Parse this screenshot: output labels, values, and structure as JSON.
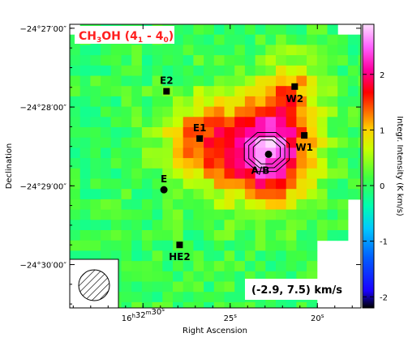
{
  "chart_data": {
    "type": "heatmap",
    "title": "CH3OH (41 - 40)",
    "title_parts": {
      "main": "CH",
      "sub1": "3",
      "mid": "OH (4",
      "sub2": "1",
      "mid2": " - 4",
      "sub3": "0",
      "end": ")"
    },
    "title_color": "#ff2020",
    "xlabel": "Right Ascension",
    "ylabel": "Declination",
    "colorbar_label": "Integr. Intensity (K km/s)",
    "colorbar_range": [
      -2.2,
      2.9
    ],
    "colorbar_ticks": [
      "2",
      "1",
      "0",
      "-1",
      "-2"
    ],
    "colorbar_tick_values": [
      2,
      1,
      0,
      -1,
      -2
    ],
    "velocity_range_label": "(-2.9, 7.5) km/s",
    "x_ticks": [
      {
        "text": "16",
        "sup": "h",
        "text2": "32",
        "sup2": "m",
        "text3": "30",
        "sup3": "s",
        "ra_sec": 30
      },
      {
        "text": "25",
        "sup": "s",
        "ra_sec": 25
      },
      {
        "text": "20",
        "sup": "s",
        "ra_sec": 20
      }
    ],
    "x_range_sec": [
      34.2,
      17.5
    ],
    "y_ticks": [
      {
        "text": "−24°27′00″",
        "offset_arcmin": 0
      },
      {
        "text": "−24°28′00″",
        "offset_arcmin": 1
      },
      {
        "text": "−24°29′00″",
        "offset_arcmin": 2
      },
      {
        "text": "−24°30′00″",
        "offset_arcmin": 3
      }
    ],
    "y_range_arcmin": [
      -0.05,
      3.55
    ],
    "sources": [
      {
        "name": "E2",
        "ra_sec": 28.65,
        "dec_arcmin": 0.8,
        "marker": "square",
        "label_pos": "above"
      },
      {
        "name": "E1",
        "ra_sec": 26.75,
        "dec_arcmin": 1.4,
        "marker": "square",
        "label_pos": "above"
      },
      {
        "name": "E",
        "ra_sec": 28.8,
        "dec_arcmin": 2.05,
        "marker": "circle",
        "label_pos": "above"
      },
      {
        "name": "HE2",
        "ra_sec": 27.9,
        "dec_arcmin": 2.75,
        "marker": "square",
        "label_pos": "below"
      },
      {
        "name": "A/B",
        "ra_sec": 22.8,
        "dec_arcmin": 1.6,
        "marker": "circle",
        "label_pos": "below-left"
      },
      {
        "name": "W2",
        "ra_sec": 21.3,
        "dec_arcmin": 0.74,
        "marker": "square",
        "label_pos": "below"
      },
      {
        "name": "W1",
        "ra_sec": 20.75,
        "dec_arcmin": 1.36,
        "marker": "square",
        "label_pos": "below"
      }
    ],
    "peaks": [
      {
        "ra_sec": 22.9,
        "dec_arcmin": 1.55,
        "amp": 2.6,
        "sigma": 0.45
      },
      {
        "ra_sec": 26.8,
        "dec_arcmin": 1.45,
        "amp": 1.3,
        "sigma": 0.38
      },
      {
        "ra_sec": 21.4,
        "dec_arcmin": 0.75,
        "amp": 0.9,
        "sigma": 0.28
      }
    ],
    "background_level": 0.05,
    "beam": "hatched-circle",
    "grid": false
  }
}
